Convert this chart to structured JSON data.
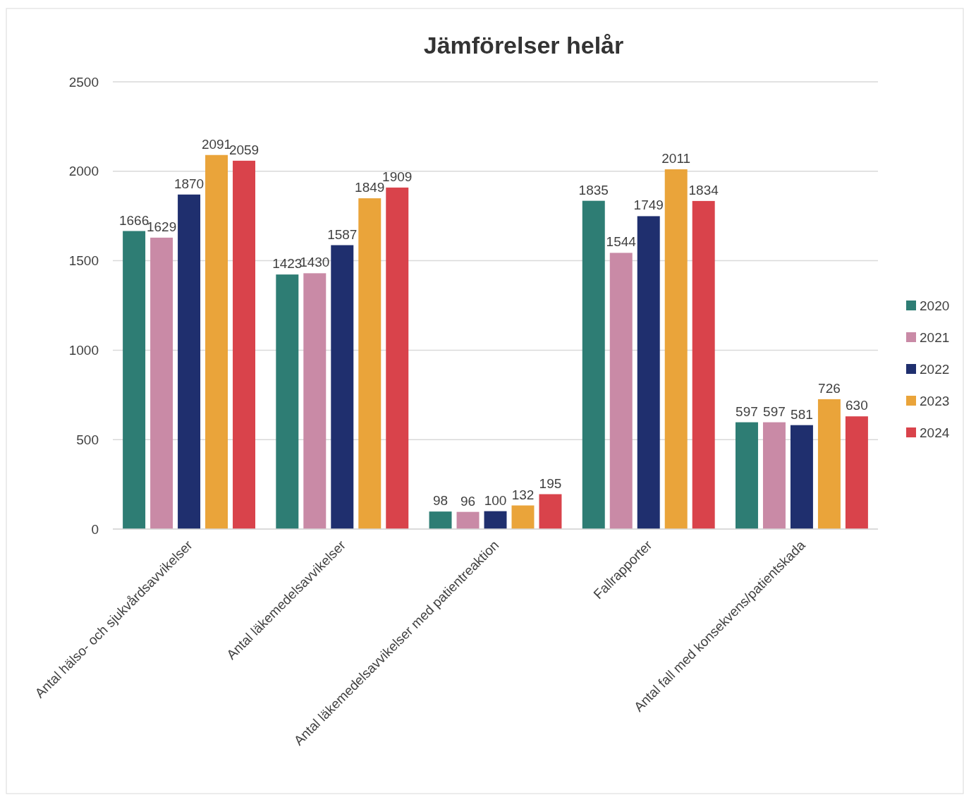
{
  "chart_data": {
    "type": "bar",
    "title": "Jämförelser helår",
    "categories": [
      "Antal hälso- och sjukvårdsavvikelser",
      "Antal läkemedelsavvikelser",
      "Antal läkemedelsavvikelser med patientreaktion",
      "Fallrapporter",
      "Antal fall med konsekvens/patientskada"
    ],
    "series": [
      {
        "name": "2020",
        "color": "#2e7d74",
        "values": [
          1666,
          1423,
          98,
          1835,
          597
        ]
      },
      {
        "name": "2021",
        "color": "#c98aa6",
        "values": [
          1629,
          1430,
          96,
          1544,
          597
        ]
      },
      {
        "name": "2022",
        "color": "#1f2f6e",
        "values": [
          1870,
          1587,
          100,
          1749,
          581
        ]
      },
      {
        "name": "2023",
        "color": "#eaa43a",
        "values": [
          2091,
          1849,
          132,
          2011,
          726
        ]
      },
      {
        "name": "2024",
        "color": "#d9434b",
        "values": [
          2059,
          1909,
          195,
          1834,
          630
        ]
      }
    ],
    "ylim": [
      0,
      2500
    ],
    "yticks": [
      0,
      500,
      1000,
      1500,
      2000,
      2500
    ],
    "grid": "y",
    "legend": "right",
    "data_labels": true
  }
}
